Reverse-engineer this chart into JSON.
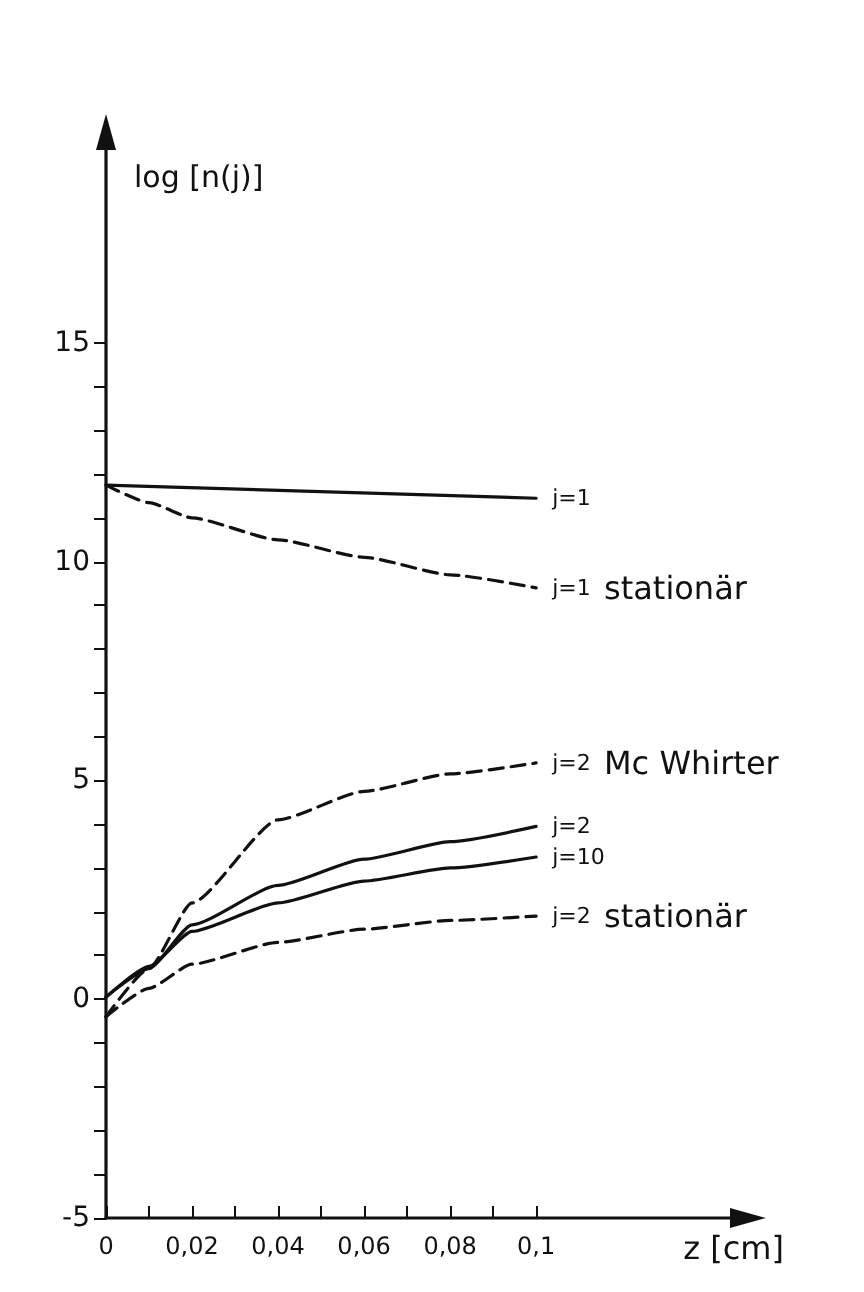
{
  "chart_data": {
    "type": "line",
    "xlabel": "z [cm]",
    "ylabel": "log [n(j)]",
    "xlim": [
      0,
      0.146
    ],
    "ylim": [
      -5,
      19.5
    ],
    "xticks": [
      0,
      {
        "value": 0.01,
        "label": null
      },
      {
        "value": 0.02,
        "label": "0,02"
      },
      {
        "value": 0.03,
        "label": null
      },
      {
        "value": 0.04,
        "label": "0,04"
      },
      {
        "value": 0.05,
        "label": null
      },
      {
        "value": 0.06,
        "label": "0,06"
      },
      {
        "value": 0.07,
        "label": null
      },
      {
        "value": 0.08,
        "label": "0,08"
      },
      {
        "value": 0.09,
        "label": null
      },
      {
        "value": 0.1,
        "label": "0,1"
      }
    ],
    "yticks": [
      -5,
      {
        "value": -4,
        "label": null
      },
      {
        "value": -3,
        "label": null
      },
      {
        "value": -2,
        "label": null
      },
      {
        "value": -1,
        "label": null
      },
      0,
      {
        "value": 1,
        "label": null
      },
      {
        "value": 2,
        "label": null
      },
      {
        "value": 3,
        "label": null
      },
      {
        "value": 4,
        "label": null
      },
      5,
      {
        "value": 6,
        "label": null
      },
      {
        "value": 7,
        "label": null
      },
      {
        "value": 8,
        "label": null
      },
      {
        "value": 9,
        "label": null
      },
      10,
      {
        "value": 11,
        "label": null
      },
      {
        "value": 12,
        "label": null
      },
      {
        "value": 13,
        "label": null
      },
      {
        "value": 14,
        "label": null
      },
      15
    ],
    "grid": false,
    "legend": false,
    "marker": "none",
    "x": [
      0,
      0.01,
      0.02,
      0.04,
      0.06,
      0.08,
      0.1
    ],
    "series": [
      {
        "name": "j=1",
        "color": "#111111",
        "line_style": "solid",
        "x": [
          0,
          0.1
        ],
        "values": [
          11.75,
          11.45
        ]
      },
      {
        "name": "j=1 stationär",
        "color": "#111111",
        "line_style": "dashed",
        "values": [
          11.75,
          11.35,
          11.0,
          10.5,
          10.1,
          9.7,
          9.4
        ]
      },
      {
        "name": "j=2 Mc Whirter",
        "color": "#111111",
        "line_style": "dashed",
        "values": [
          -0.4,
          0.7,
          2.2,
          4.1,
          4.75,
          5.15,
          5.4
        ]
      },
      {
        "name": "j=2",
        "color": "#111111",
        "line_style": "solid",
        "values": [
          0.05,
          0.7,
          1.7,
          2.6,
          3.2,
          3.6,
          3.95
        ]
      },
      {
        "name": "j=10",
        "color": "#111111",
        "line_style": "solid",
        "values": [
          0.05,
          0.75,
          1.55,
          2.2,
          2.7,
          3.0,
          3.25
        ]
      },
      {
        "name": "j=2 stationär",
        "color": "#111111",
        "line_style": "dashed",
        "values": [
          -0.4,
          0.25,
          0.8,
          1.3,
          1.6,
          1.8,
          1.9
        ]
      }
    ]
  }
}
